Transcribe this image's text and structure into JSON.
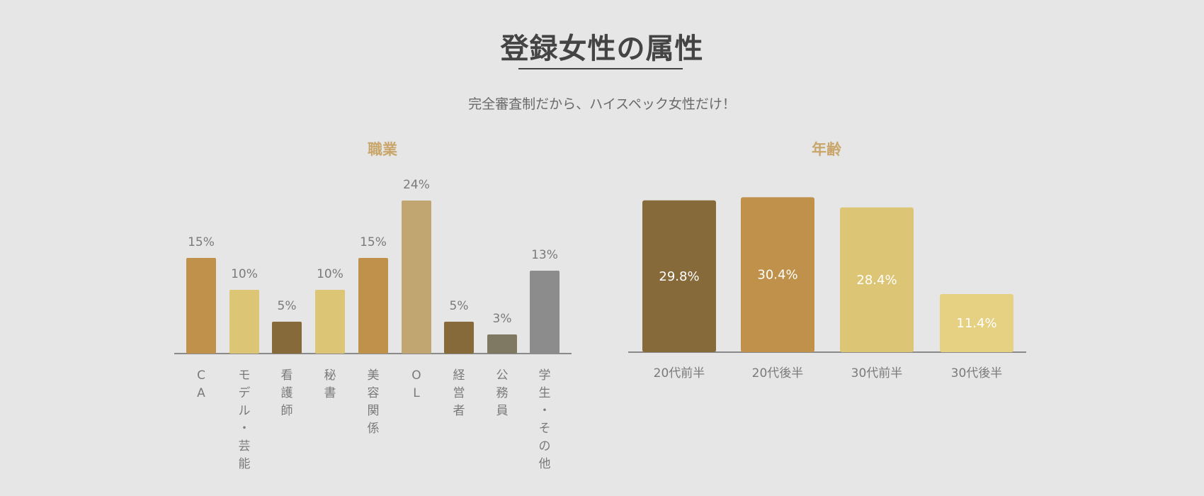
{
  "header": {
    "title": "登録女性の属性",
    "subtitle": "完全審査制だから、ハイスペック女性だけ！"
  },
  "colors": {
    "background": "#e6e6e6",
    "title": "#444444",
    "section_title": "#c9a66b",
    "axis": "#8a8a8a",
    "label": "#7a7a7a"
  },
  "chart_data": [
    {
      "type": "bar",
      "title": "職業",
      "categories": [
        "CA",
        "モデル・芸能",
        "看護師",
        "秘書",
        "美容関係",
        "OL",
        "経営者",
        "公務員",
        "学生・その他"
      ],
      "values": [
        15,
        10,
        5,
        10,
        15,
        24,
        5,
        3,
        13
      ],
      "value_labels": [
        "15%",
        "10%",
        "5%",
        "10%",
        "15%",
        "24%",
        "5%",
        "3%",
        "13%"
      ],
      "colors": [
        "#c0914a",
        "#dcc676",
        "#876a3a",
        "#dcc676",
        "#c0914a",
        "#c1a671",
        "#876a3a",
        "#7f7863",
        "#8c8c8c"
      ],
      "ylim": [
        0,
        30
      ],
      "grid": false,
      "legend": "none"
    },
    {
      "type": "bar",
      "title": "年齢",
      "categories": [
        "20代前半",
        "20代後半",
        "30代前半",
        "30代後半"
      ],
      "values": [
        29.8,
        30.4,
        28.4,
        11.4
      ],
      "value_labels": [
        "29.8%",
        "30.4%",
        "28.4%",
        "11.4%"
      ],
      "colors": [
        "#876a3a",
        "#c0914a",
        "#dcc676",
        "#e6d182"
      ],
      "ylim": [
        0,
        35
      ],
      "grid": false,
      "legend": "none"
    }
  ]
}
